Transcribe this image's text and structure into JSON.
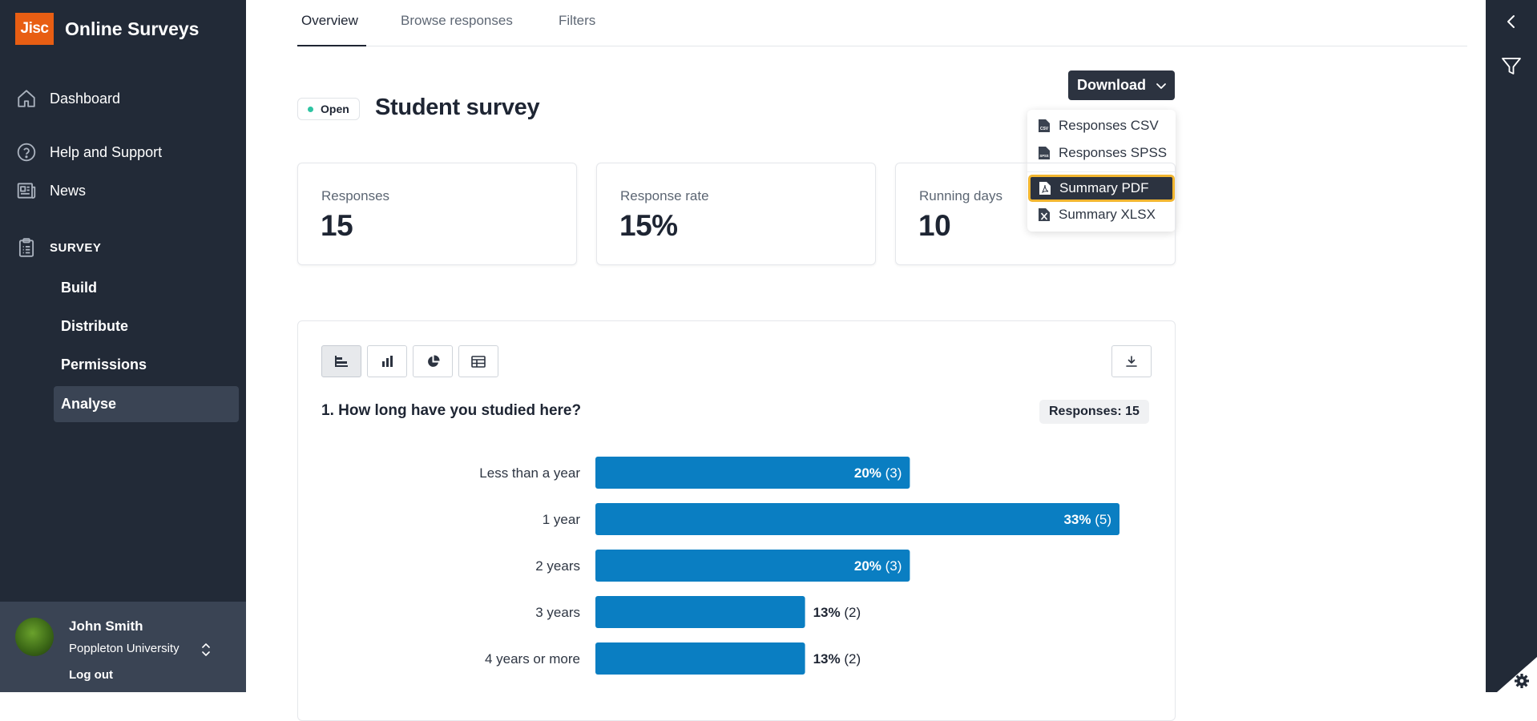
{
  "brand": {
    "logo_text": "Jisc",
    "app_name": "Online Surveys",
    "logo_color": "#e85e13"
  },
  "nav": {
    "dashboard": "Dashboard",
    "help": "Help and Support",
    "news": "News",
    "survey_section": "SURVEY",
    "survey_items": [
      {
        "label": "Build",
        "active": false
      },
      {
        "label": "Distribute",
        "active": false
      },
      {
        "label": "Permissions",
        "active": false
      },
      {
        "label": "Analyse",
        "active": true
      }
    ]
  },
  "user": {
    "name": "John Smith",
    "organisation": "Poppleton University",
    "logout_label": "Log out"
  },
  "tabs": [
    "Overview",
    "Browse responses",
    "Filters"
  ],
  "active_tab": "Overview",
  "survey": {
    "status": "Open",
    "title": "Student survey",
    "status_color": "#2ec4a2"
  },
  "download": {
    "label": "Download",
    "menu": [
      {
        "label": "Responses CSV",
        "icon": "csv-file-icon"
      },
      {
        "label": "Responses SPSS",
        "icon": "spss-file-icon"
      },
      {
        "label": "Summary PDF",
        "icon": "pdf-file-icon",
        "focused": true
      },
      {
        "label": "Summary XLSX",
        "icon": "xlsx-file-icon"
      }
    ]
  },
  "stats": [
    {
      "label": "Responses",
      "value": "15"
    },
    {
      "label": "Response rate",
      "value": "15%"
    },
    {
      "label": "Running days",
      "value": "10"
    }
  ],
  "question": {
    "title": "1. How long have you studied here?",
    "responses_label": "Responses: 15",
    "view_modes": [
      "horizontal-bar-chart-icon",
      "vertical-bar-chart-icon",
      "pie-chart-icon",
      "table-icon"
    ],
    "selected_view": "horizontal-bar-chart-icon"
  },
  "chart_data": {
    "type": "bar",
    "orientation": "horizontal",
    "categories": [
      "Less than a year",
      "1 year",
      "2 years",
      "3 years",
      "4 years or more"
    ],
    "values": [
      3,
      5,
      3,
      2,
      2
    ],
    "percent_labels": [
      "20%",
      "33%",
      "20%",
      "13%",
      "13%"
    ],
    "count_labels": [
      "(3)",
      "(5)",
      "(3)",
      "(2)",
      "(2)"
    ],
    "xlim": [
      0,
      5
    ],
    "bar_color": "#0a7ec2"
  }
}
